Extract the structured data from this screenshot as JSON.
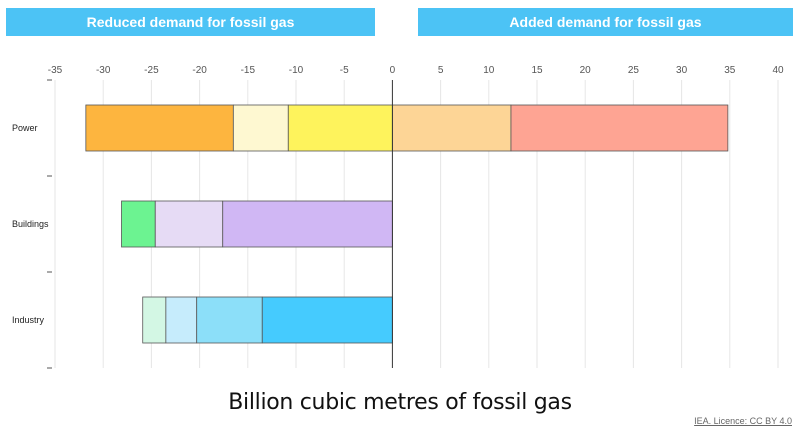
{
  "header": {
    "left_label": "Reduced demand for fossil gas",
    "right_label": "Added demand for fossil gas",
    "color": "#4cc3f5"
  },
  "chart_data": {
    "type": "bar",
    "orientation": "horizontal",
    "stacked": true,
    "xlim": [
      -35,
      40
    ],
    "xticks": [
      -35,
      -30,
      -25,
      -20,
      -15,
      -10,
      -5,
      0,
      5,
      10,
      15,
      20,
      25,
      30,
      35,
      40
    ],
    "grid": true,
    "xlabel": "Billion cubic metres of fossil gas",
    "categories": [
      "Power",
      "Buildings",
      "Industry"
    ],
    "bars": [
      {
        "category": "Power",
        "segments": [
          {
            "start": -31.8,
            "end": -16.5,
            "color": "#fdb53f"
          },
          {
            "start": -16.5,
            "end": -10.8,
            "color": "#fef8d1"
          },
          {
            "start": -10.8,
            "end": 0,
            "color": "#fef35c"
          },
          {
            "start": 0,
            "end": 12.3,
            "color": "#fdd596"
          },
          {
            "start": 12.3,
            "end": 34.8,
            "color": "#fea493"
          }
        ]
      },
      {
        "category": "Buildings",
        "segments": [
          {
            "start": -28.1,
            "end": -24.6,
            "color": "#6cf391"
          },
          {
            "start": -24.6,
            "end": -17.6,
            "color": "#e6dbf5"
          },
          {
            "start": -17.6,
            "end": 0,
            "color": "#d0b7f4"
          }
        ]
      },
      {
        "category": "Industry",
        "segments": [
          {
            "start": -25.9,
            "end": -23.5,
            "color": "#d3f7e4"
          },
          {
            "start": -23.5,
            "end": -20.3,
            "color": "#c6ecfc"
          },
          {
            "start": -20.3,
            "end": -13.5,
            "color": "#8cdff9"
          },
          {
            "start": -13.5,
            "end": 0,
            "color": "#45cbfe"
          }
        ]
      }
    ]
  },
  "footer": {
    "credit": "IEA. Licence: CC BY 4.0"
  }
}
